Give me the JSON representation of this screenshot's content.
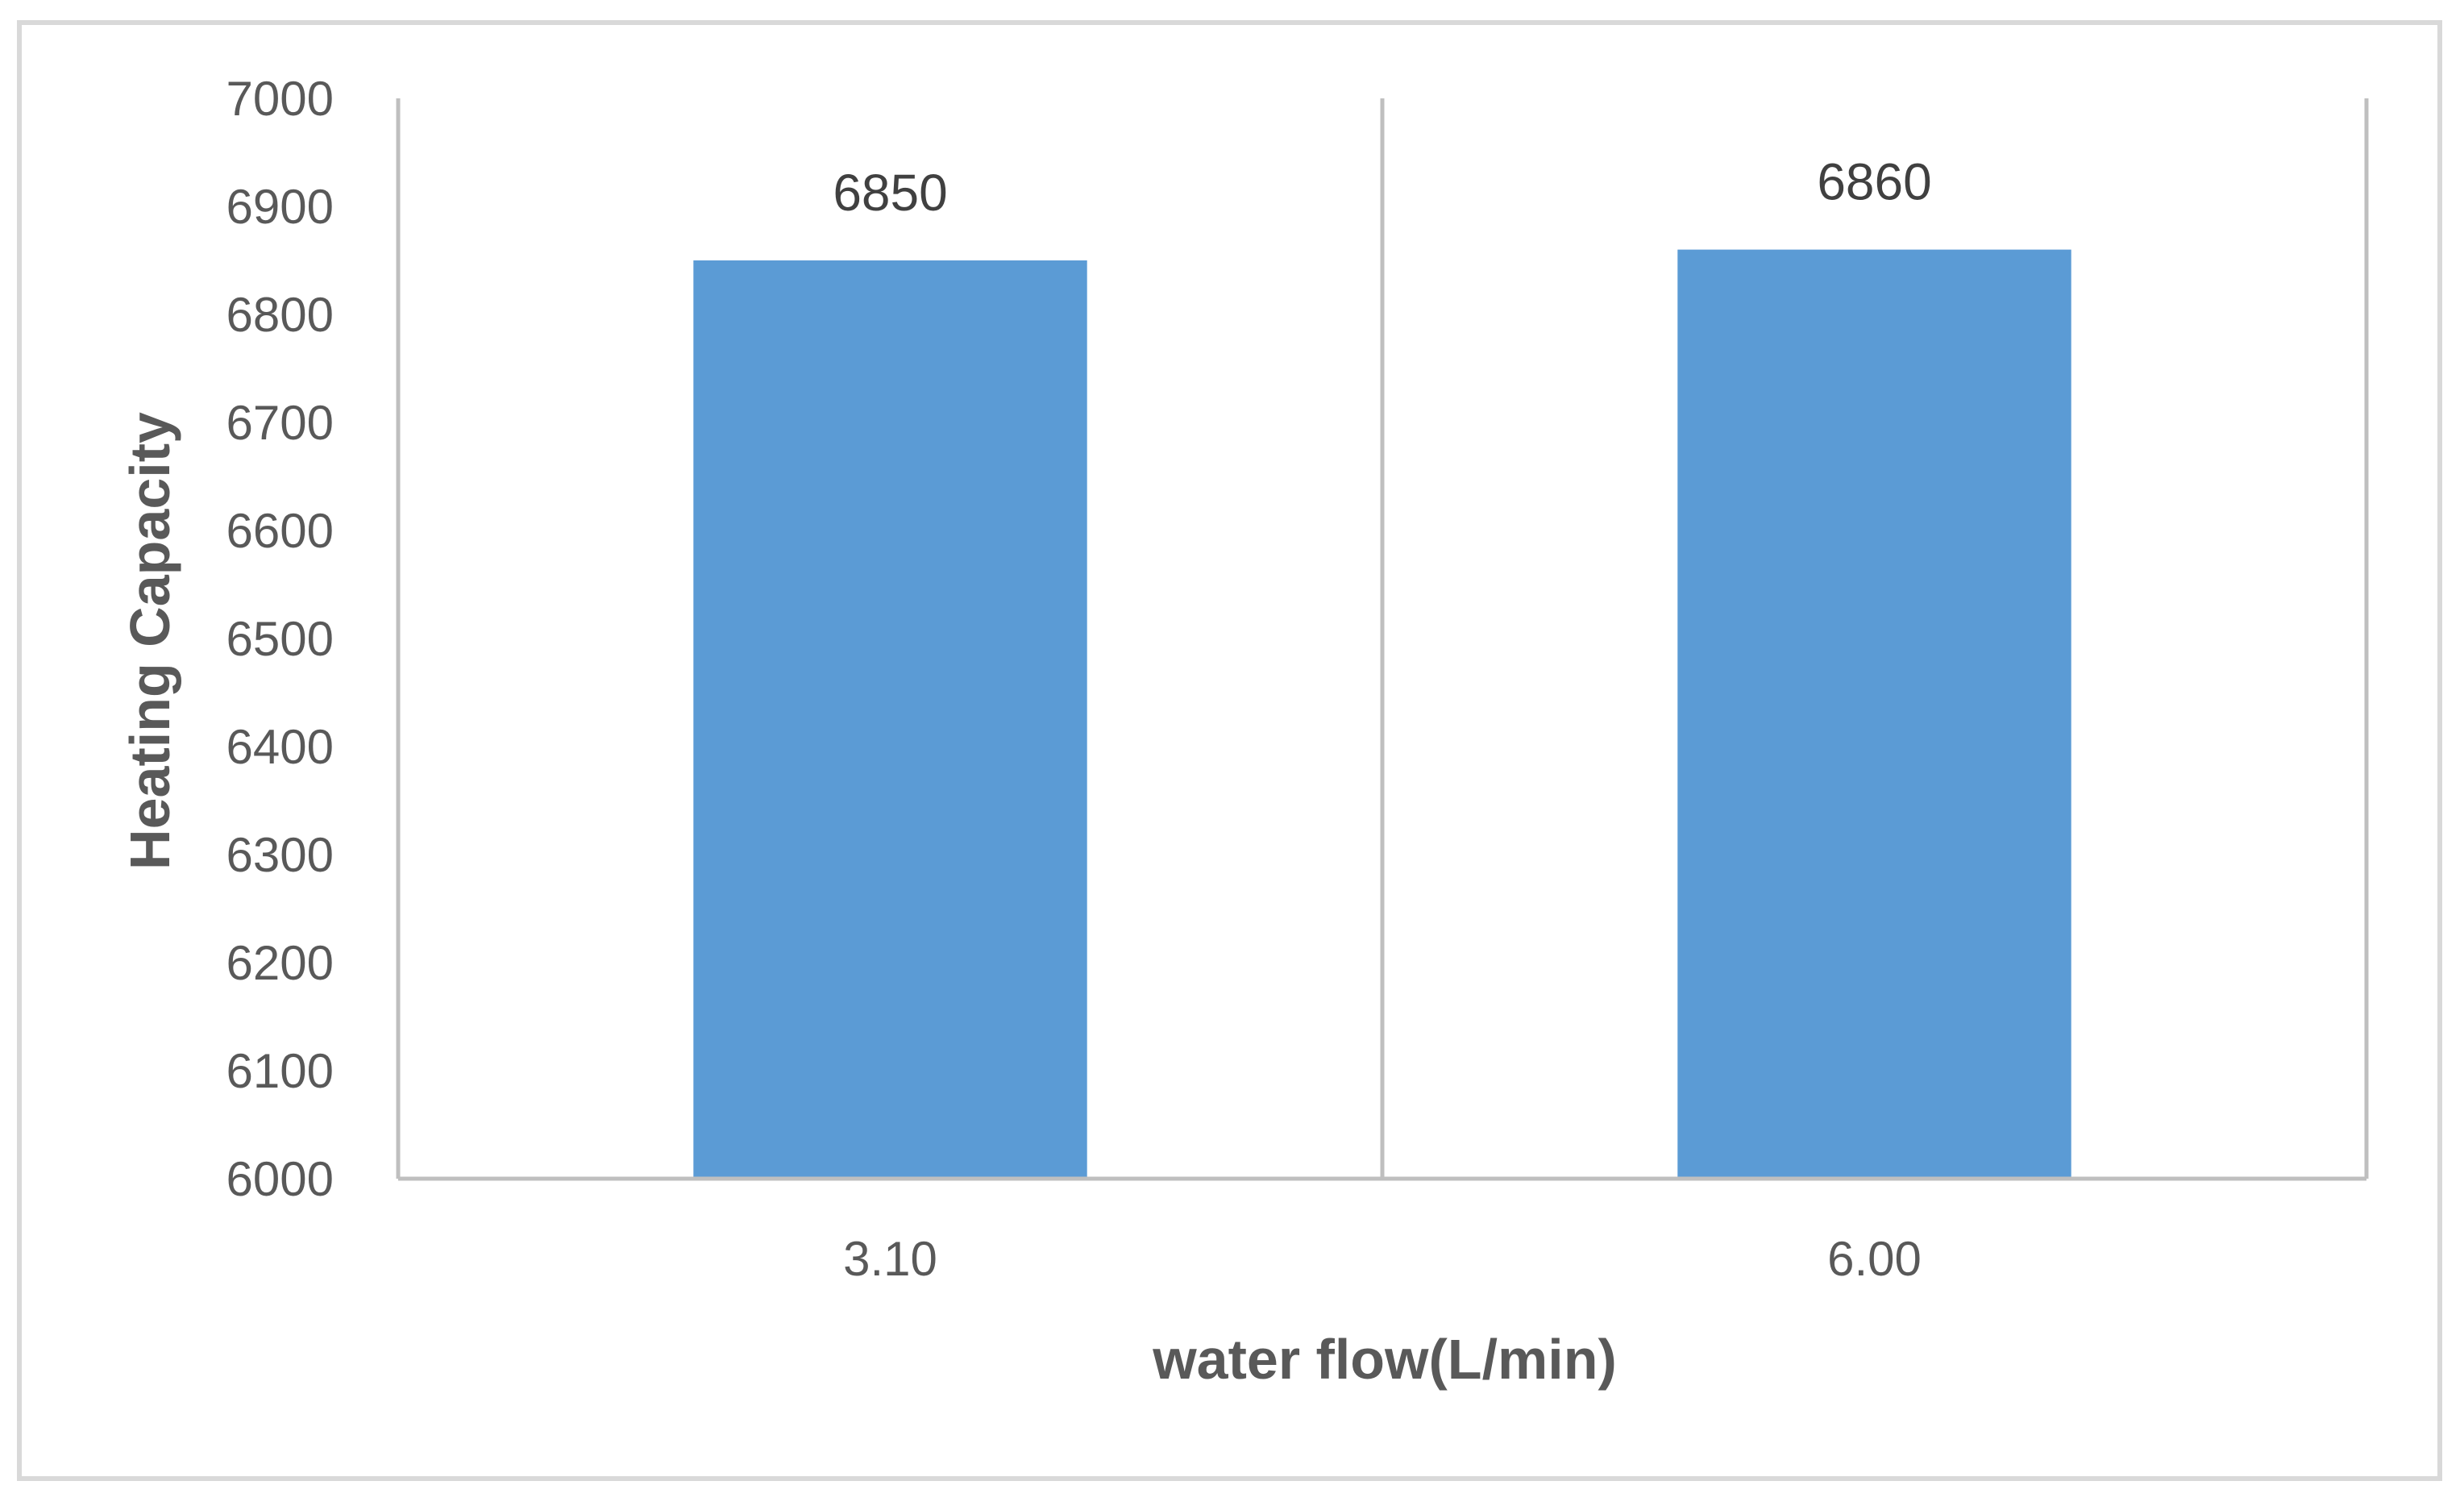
{
  "chart_data": {
    "type": "bar",
    "title": "",
    "xlabel": "water flow(L/min)",
    "ylabel": "Heating Capacity",
    "categories": [
      "3.10",
      "6.00"
    ],
    "values": [
      6850,
      6860
    ],
    "data_labels": [
      "6850",
      "6860"
    ],
    "ylim": [
      6000,
      7000
    ],
    "yticks": [
      "6000",
      "6100",
      "6200",
      "6300",
      "6400",
      "6500",
      "6600",
      "6700",
      "6800",
      "6900",
      "7000"
    ],
    "grid": {
      "vertical_category_separators": true,
      "horizontal": false
    },
    "legend": "none",
    "colors": {
      "bar": "#5B9BD5",
      "axis": "#BFBFBF",
      "border": "#D9D9D9",
      "text": "#595959"
    }
  }
}
